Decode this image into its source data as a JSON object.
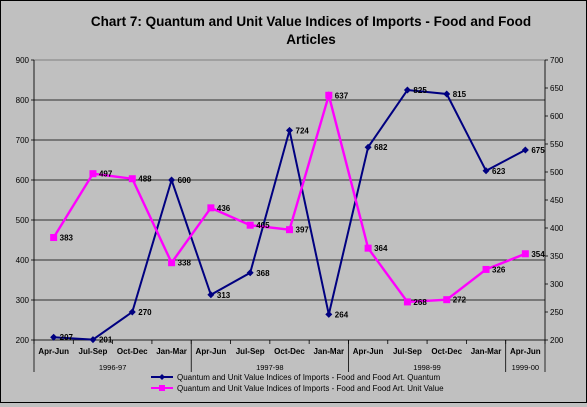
{
  "chart_data": {
    "type": "line",
    "title": "Chart 7: Quantum and Unit Value Indices of Imports - Food and Food Articles",
    "categories": [
      "Apr-Jun",
      "Jul-Sep",
      "Oct-Dec",
      "Jan-Mar",
      "Apr-Jun",
      "Jul-Sep",
      "Oct-Dec",
      "Jan-Mar",
      "Apr-Jun",
      "Jul-Sep",
      "Oct-Dec",
      "Jan-Mar",
      "Apr-Jun"
    ],
    "year_groups": [
      {
        "label": "1996-97",
        "start": 0
      },
      {
        "label": "1997-98",
        "start": 4
      },
      {
        "label": "1998-99",
        "start": 8
      },
      {
        "label": "1999-00",
        "start": 12
      }
    ],
    "left_axis": {
      "ylim": [
        200,
        900
      ],
      "ticks": [
        200,
        300,
        400,
        500,
        600,
        700,
        800,
        900
      ]
    },
    "right_axis": {
      "ylim": [
        200,
        700
      ],
      "ticks": [
        200,
        250,
        300,
        350,
        400,
        450,
        500,
        550,
        600,
        650,
        700
      ]
    },
    "series": [
      {
        "name": "Quantum and Unit Value Indices of Imports - Food and Food Art. Quantum",
        "axis": "left",
        "color": "#000080",
        "marker": "diamond",
        "values": [
          207,
          201,
          270,
          600,
          313,
          368,
          724,
          264,
          682,
          825,
          815,
          623,
          675
        ],
        "labels": [
          "207",
          "201",
          "270",
          "600",
          "313",
          "368",
          "724",
          "264",
          "682",
          "825",
          "815",
          "623",
          "675"
        ]
      },
      {
        "name": "Quantum and Unit Value Indices of Imports - Food and Food Art. Unit Value",
        "axis": "right",
        "color": "#ff00ff",
        "marker": "square",
        "values": [
          383,
          497,
          488,
          338,
          436,
          405,
          397,
          637,
          364,
          268,
          272,
          326,
          354
        ],
        "labels": [
          "383",
          "497",
          "488",
          "338",
          "436",
          "405",
          "397",
          "637",
          "364",
          "268",
          "272",
          "326",
          "354"
        ]
      }
    ],
    "grid": true,
    "legend_position": "bottom"
  }
}
